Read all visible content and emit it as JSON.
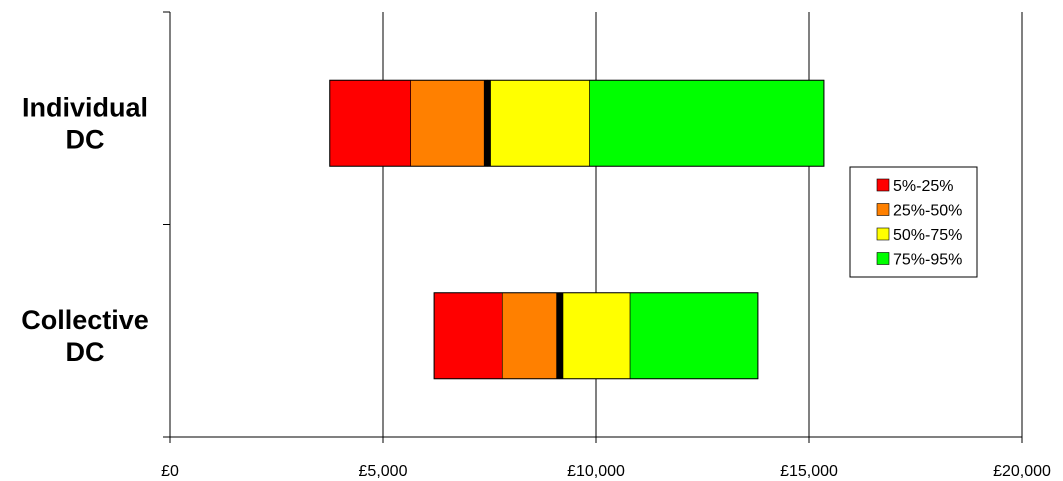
{
  "chart_data": {
    "type": "bar",
    "orientation": "horizontal",
    "stacked": true,
    "categories": [
      [
        "Individual",
        "DC"
      ],
      [
        "Collective",
        "DC"
      ]
    ],
    "bar_start": [
      3750,
      6200
    ],
    "median": [
      7450,
      9150
    ],
    "series": [
      {
        "name": "5%-25%",
        "color": "#ff0000",
        "values": [
          1900,
          1600
        ]
      },
      {
        "name": "25%-50%",
        "color": "#ff8000",
        "values": [
          1800,
          1350
        ]
      },
      {
        "name": "50%-75%",
        "color": "#ffff00",
        "values": [
          2400,
          1650
        ]
      },
      {
        "name": "75%-95%",
        "color": "#00ff00",
        "values": [
          5500,
          3000
        ]
      }
    ],
    "xlim": [
      0,
      20000
    ],
    "xticks": [
      0,
      5000,
      10000,
      15000,
      20000
    ],
    "xtick_labels": [
      "£0",
      "£5,000",
      "£10,000",
      "£15,000",
      "£20,000"
    ],
    "grid": "vertical",
    "legend_position": "right"
  }
}
